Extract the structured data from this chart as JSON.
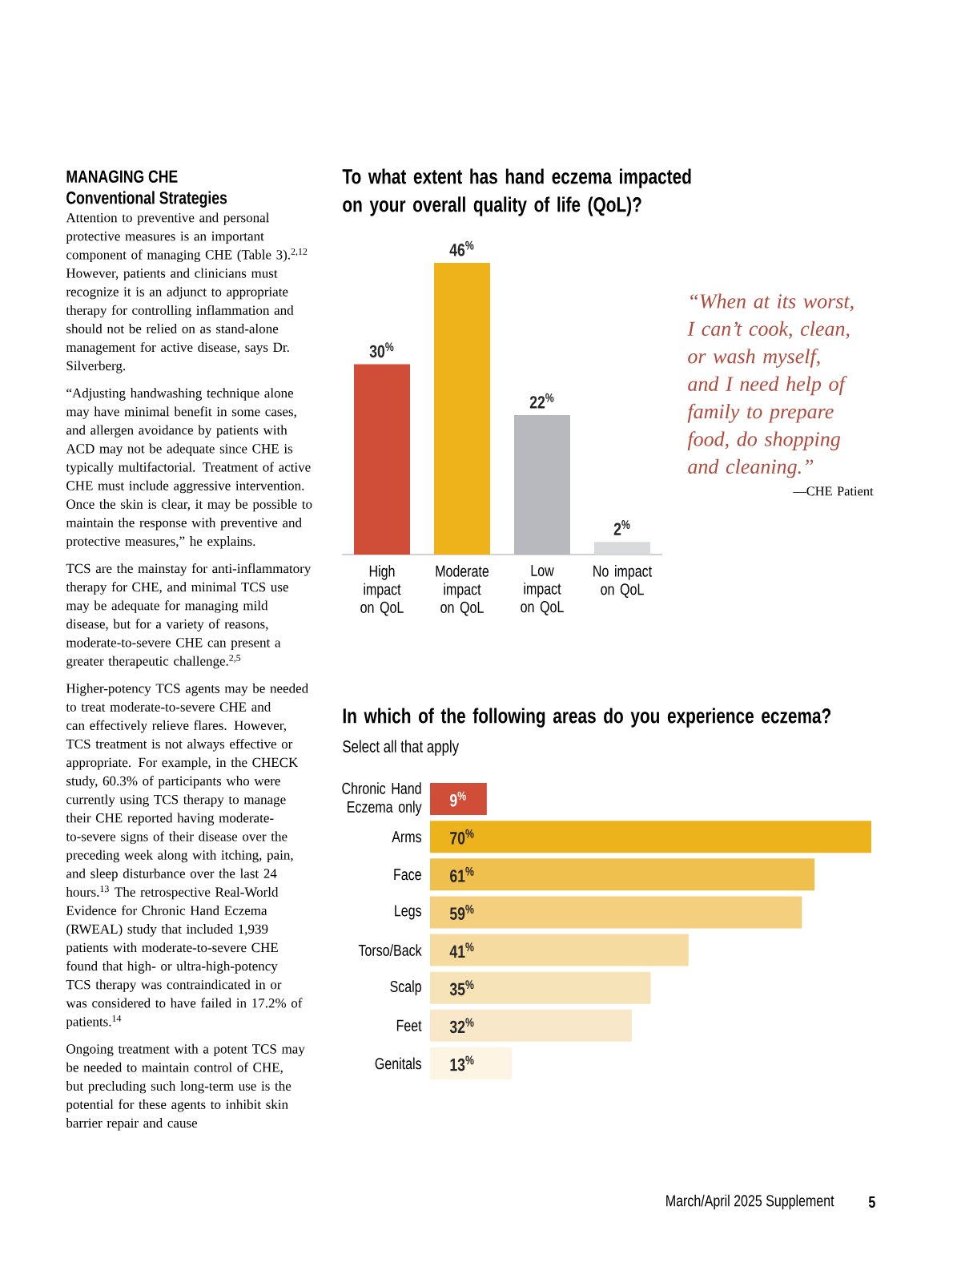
{
  "chart_data": [
    {
      "type": "other",
      "title": "MANAGING CHE",
      "subtitle": "Conventional Strategies",
      "annotations": [
        "Attention to preventive and personal protective measures is an important component of managing CHE (Table 3).$^{2,12}$ However, patients and clinicians must recognize it is an adjunct to appropriate therapy for controlling inflammation and should not be relied on as stand-alone management for active disease, says Dr. Silverberg.",
        "“Adjusting handwashing technique alone may have minimal benefit in some cases, and allergen avoidance by patients with ACD may not be adequate since CHE is typically multifactorial. Treatment of active CHE must include aggressive intervention. Once the skin is clear, it may be possible to maintain the response with preventive and protective measures,” he explains.",
        "TCS are the mainstay for anti-inflammatory therapy for CHE, and minimal TCS use may be adequate for managing mild disease, but for a variety of reasons, moderate-to-severe CHE can present a greater therapeutic challenge.$^{2,5}$",
        "Higher-potency TCS agents may be needed to treat moderate-to-severe CHE and can effectively relieve flares. However, TCS treatment is not always effective or appropriate. For example, in the CHECK study, 60.3% of participants who were currently using TCS therapy to manage their CHE reported having moderate-to-severe signs of their disease over the preceding week along with itching, pain, and sleep disturbance over the last 24 hours.$^{13}$ The retrospective Real-World Evidence for Chronic Hand Eczema (RWEAL) study that included 1,939 patients with moderate-to-severe CHE found that high- or ultra-high-potency TCS therapy was contraindicated in or was considered to have failed in 17.2% of patients.$^{14}$",
        "Ongoing treatment with a potent TCS may be needed to maintain control of CHE, but precluding such long-term use is the potential for these agents to inhibit skin barrier repair and cause",
        "March/April 2025 Supplement",
        "5"
      ]
    },
    {
      "type": "bar",
      "title": "To what extent has hand eczema impacted on your overall quality of life (QoL)?",
      "categories": [
        "High impact on QoL",
        "Moderate impact on QoL",
        "Low impact on QoL",
        "No impact on QoL"
      ],
      "values": [
        30,
        46,
        22,
        2
      ],
      "colors": [
        "#d04e37",
        "#eeb31b",
        "#b8b9be",
        "#d9dadb"
      ],
      "value_labels": [
        "30$^{%}$",
        "46$^{%}$",
        "22$^{%}$",
        "2$^{%}$"
      ],
      "annotations": [
        "“When at its worst, I can’t cook, clean, or wash myself, and I need help of family to prepare food, do shopping and cleaning.”",
        "—CHE Patient"
      ]
    },
    {
      "type": "bar",
      "orientation": "horizontal",
      "title": "In which of the following areas do you experience eczema?",
      "subtitle": "Select all that apply",
      "categories": [
        "Chronic Hand Eczema only",
        "Arms",
        "Face",
        "Legs",
        "Torso/Back",
        "Scalp",
        "Feet",
        "Genitals"
      ],
      "values": [
        9,
        70,
        61,
        59,
        41,
        35,
        32,
        13
      ],
      "colors": [
        "#d04e37",
        "#edb31c",
        "#f0c04f",
        "#f4d07e",
        "#f5dba0",
        "#f6e3b8",
        "#f8e8c9",
        "#fdf4e4"
      ],
      "value_labels": [
        "9$^{%}$",
        "70$^{%}$",
        "61$^{%}$",
        "59$^{%}$",
        "41$^{%}$",
        "35$^{%}$",
        "32$^{%}$",
        "13$^{%}$"
      ]
    }
  ]
}
